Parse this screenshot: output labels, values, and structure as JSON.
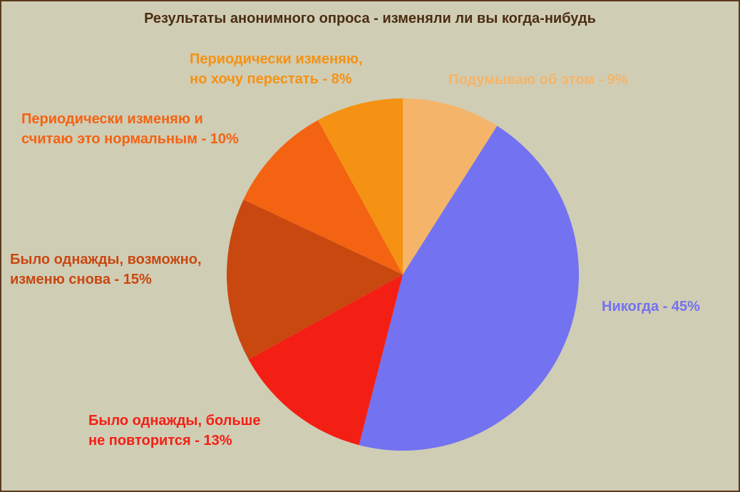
{
  "chart_data": {
    "type": "pie",
    "title": "Результаты анонимного опроса - изменяли ли вы когда-нибудь",
    "series": [
      {
        "name": "Результаты анонимного опроса",
        "values": [
          9,
          45,
          13,
          15,
          10,
          8
        ]
      }
    ],
    "categories": [
      "Подумываю об этом",
      "Никогда",
      "Было однажды, больше не повторится",
      "Было однажды, возможно, изменю снова",
      "Периодически изменяю и считаю это нормальным",
      "Периодически изменяю, но хочу перестать"
    ],
    "slices": [
      {
        "key": "thinking",
        "value": 9,
        "color": "#f4b56a",
        "label_lines": [
          "Подумываю об этом - 9%"
        ]
      },
      {
        "key": "never",
        "value": 45,
        "color": "#7372f0",
        "label_lines": [
          "Никогда - 45%"
        ]
      },
      {
        "key": "once-never",
        "value": 13,
        "color": "#f41f14",
        "label_lines": [
          "Было однажды, больше",
          "не повторится - 13%"
        ]
      },
      {
        "key": "once-maybe",
        "value": 15,
        "color": "#c84810",
        "label_lines": [
          "Было однажды, возможно,",
          "изменю снова - 15%"
        ]
      },
      {
        "key": "periodic-ok",
        "value": 10,
        "color": "#f46312",
        "label_lines": [
          "Периодически изменяю и",
          "считаю это нормальным - 10%"
        ]
      },
      {
        "key": "periodic-stop",
        "value": 8,
        "color": "#f59213",
        "label_lines": [
          "Периодически изменяю,",
          "но хочу перестать - 8%"
        ]
      }
    ],
    "start_angle": "top",
    "direction": "clockwise",
    "legend": "none"
  },
  "background_color": "#d0cdb5",
  "title_color": "#4a2e12"
}
